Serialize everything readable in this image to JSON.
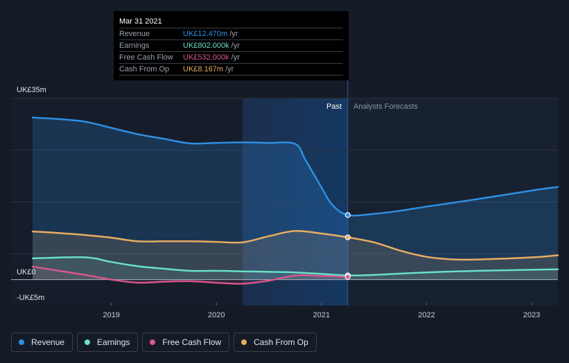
{
  "tooltip": {
    "date": "Mar 31 2021",
    "rows": [
      {
        "name": "Revenue",
        "value": "UK£12.470m",
        "unit": "/yr",
        "color": "#2e8fe3"
      },
      {
        "name": "Earnings",
        "value": "UK£802.000k",
        "unit": "/yr",
        "color": "#69e0c8"
      },
      {
        "name": "Free Cash Flow",
        "value": "UK£532.000k",
        "unit": "/yr",
        "color": "#d9568c"
      },
      {
        "name": "Cash From Op",
        "value": "UK£8.167m",
        "unit": "/yr",
        "color": "#e9ad62"
      }
    ]
  },
  "labels": {
    "past": "Past",
    "forecast": "Analysts Forecasts"
  },
  "legend": [
    {
      "label": "Revenue",
      "color": "#2e8fe3"
    },
    {
      "label": "Earnings",
      "color": "#69e0c8"
    },
    {
      "label": "Free Cash Flow",
      "color": "#d9568c"
    },
    {
      "label": "Cash From Op",
      "color": "#e9ad62"
    }
  ],
  "chart_data": {
    "type": "line",
    "ylim": [
      -5,
      35
    ],
    "y_ticks": [
      {
        "value": 35,
        "label": "UK£35m"
      },
      {
        "value": 0,
        "label": "UK£0"
      },
      {
        "value": -5,
        "label": "-UK£5m"
      }
    ],
    "xlim": [
      2018.25,
      2023.25
    ],
    "x_ticks": [
      {
        "value": 2019,
        "label": "2019"
      },
      {
        "value": 2020,
        "label": "2020"
      },
      {
        "value": 2021,
        "label": "2021"
      },
      {
        "value": 2022,
        "label": "2022"
      },
      {
        "value": 2023,
        "label": "2023"
      }
    ],
    "past_range": [
      2020.25,
      2021.25
    ],
    "marker_x": 2021.25,
    "grid": true,
    "series": [
      {
        "name": "Revenue",
        "color": "#2e8fe3",
        "points": [
          [
            2018.25,
            31.3
          ],
          [
            2018.5,
            31.0
          ],
          [
            2018.75,
            30.5
          ],
          [
            2019.0,
            29.3
          ],
          [
            2019.25,
            28.1
          ],
          [
            2019.5,
            27.2
          ],
          [
            2019.75,
            26.3
          ],
          [
            2020.0,
            26.4
          ],
          [
            2020.25,
            26.5
          ],
          [
            2020.5,
            26.4
          ],
          [
            2020.75,
            26.2
          ],
          [
            2020.85,
            23.0
          ],
          [
            2021.0,
            17.8
          ],
          [
            2021.1,
            14.5
          ],
          [
            2021.25,
            12.47
          ],
          [
            2021.5,
            12.7
          ],
          [
            2021.75,
            13.3
          ],
          [
            2022.0,
            14.1
          ],
          [
            2022.5,
            15.6
          ],
          [
            2023.0,
            17.2
          ],
          [
            2023.25,
            17.9
          ]
        ]
      },
      {
        "name": "Earnings",
        "color": "#69e0c8",
        "points": [
          [
            2018.25,
            4.1
          ],
          [
            2018.75,
            4.3
          ],
          [
            2019.0,
            3.4
          ],
          [
            2019.25,
            2.6
          ],
          [
            2019.5,
            2.1
          ],
          [
            2019.75,
            1.7
          ],
          [
            2020.0,
            1.7
          ],
          [
            2020.25,
            1.6
          ],
          [
            2020.5,
            1.5
          ],
          [
            2020.75,
            1.4
          ],
          [
            2021.0,
            1.1
          ],
          [
            2021.25,
            0.8
          ],
          [
            2021.5,
            0.9
          ],
          [
            2022.0,
            1.4
          ],
          [
            2022.5,
            1.7
          ],
          [
            2023.0,
            1.9
          ],
          [
            2023.25,
            2.0
          ]
        ]
      },
      {
        "name": "Free Cash Flow",
        "color": "#d9568c",
        "points": [
          [
            2018.25,
            2.5
          ],
          [
            2018.5,
            1.7
          ],
          [
            2018.75,
            0.9
          ],
          [
            2019.0,
            0.0
          ],
          [
            2019.25,
            -0.6
          ],
          [
            2019.5,
            -0.4
          ],
          [
            2019.75,
            -0.3
          ],
          [
            2020.0,
            -0.6
          ],
          [
            2020.25,
            -0.8
          ],
          [
            2020.5,
            -0.2
          ],
          [
            2020.75,
            0.8
          ],
          [
            2021.0,
            0.7
          ],
          [
            2021.25,
            0.53
          ]
        ]
      },
      {
        "name": "Cash From Op",
        "color": "#e9ad62",
        "points": [
          [
            2018.25,
            9.3
          ],
          [
            2018.5,
            9.0
          ],
          [
            2018.75,
            8.6
          ],
          [
            2019.0,
            8.1
          ],
          [
            2019.25,
            7.4
          ],
          [
            2019.5,
            7.4
          ],
          [
            2019.75,
            7.4
          ],
          [
            2020.0,
            7.3
          ],
          [
            2020.25,
            7.2
          ],
          [
            2020.5,
            8.4
          ],
          [
            2020.75,
            9.4
          ],
          [
            2021.0,
            8.9
          ],
          [
            2021.25,
            8.167
          ],
          [
            2021.5,
            7.2
          ],
          [
            2021.75,
            5.6
          ],
          [
            2022.0,
            4.4
          ],
          [
            2022.25,
            3.9
          ],
          [
            2022.5,
            3.9
          ],
          [
            2023.0,
            4.3
          ],
          [
            2023.25,
            4.7
          ]
        ]
      }
    ]
  }
}
